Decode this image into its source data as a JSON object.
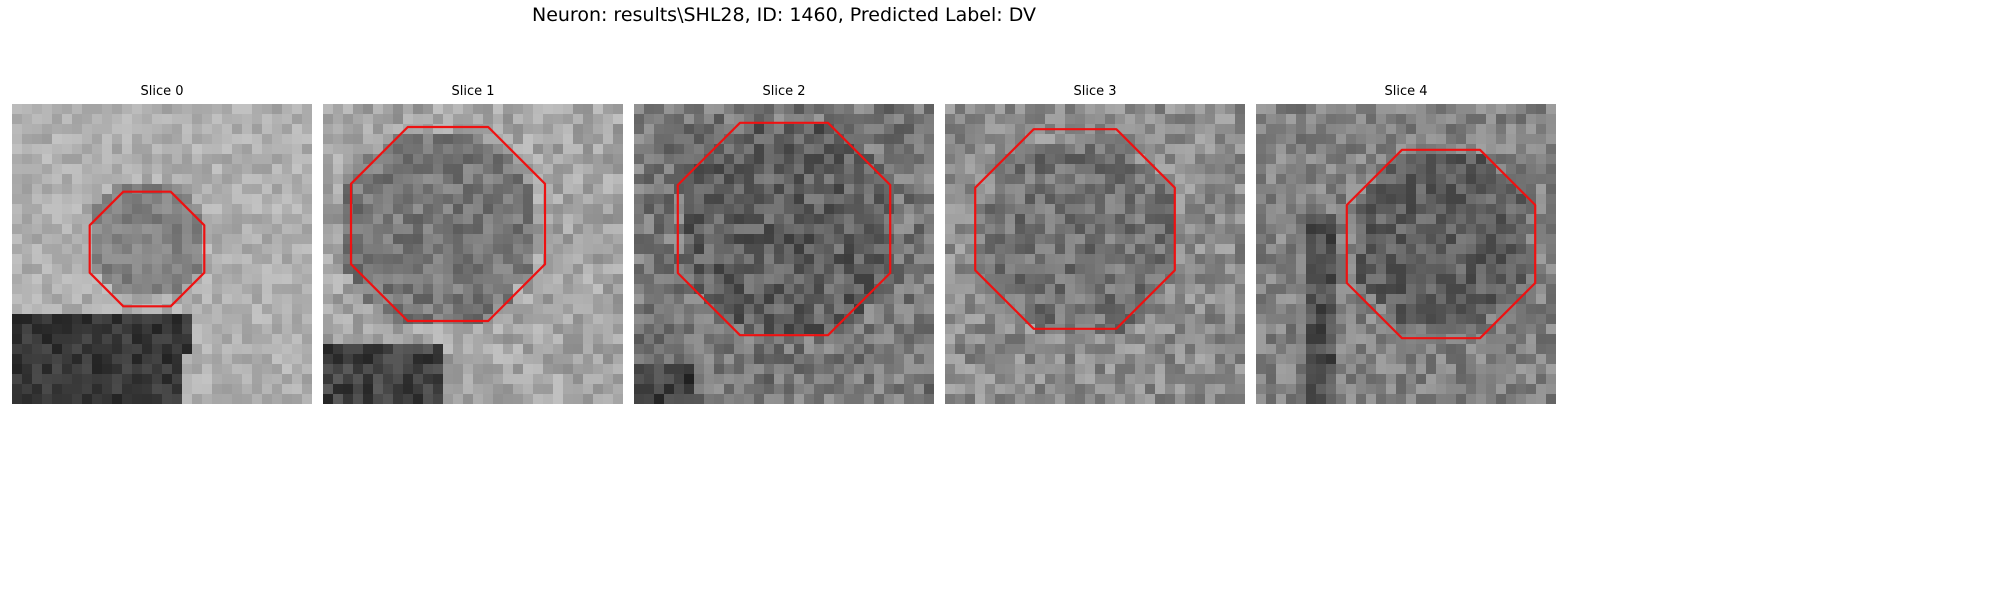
{
  "figure": {
    "title": "Neuron: results\\SHL28, ID: 1460, Predicted Label: DV"
  },
  "panels": [
    {
      "title": "Slice 0"
    },
    {
      "title": "Slice 1"
    },
    {
      "title": "Slice 2"
    },
    {
      "title": "Slice 3"
    },
    {
      "title": "Slice 4"
    }
  ],
  "colors": {
    "contour": "#ee1111",
    "background": "#ffffff"
  }
}
